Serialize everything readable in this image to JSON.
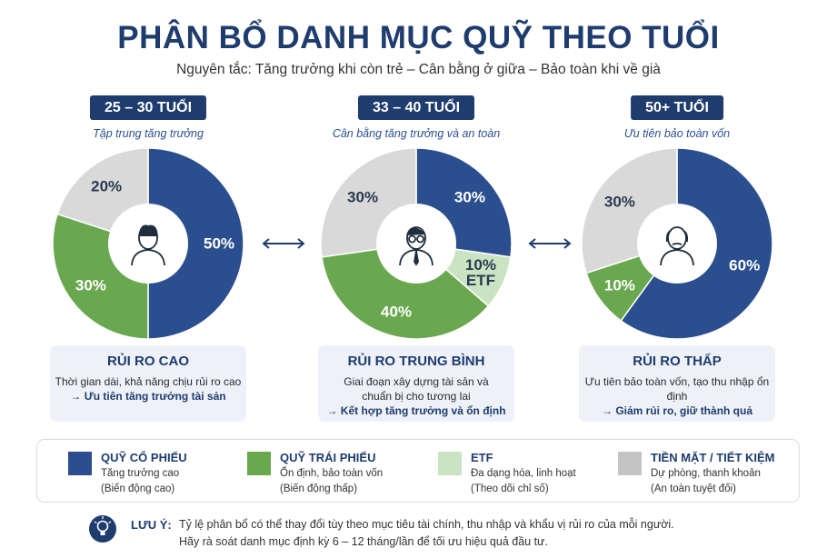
{
  "title": "PHÂN BỔ DANH MỤC QUỸ THEO TUỔI",
  "subtitle": "Nguyên tắc: Tăng trưởng khi còn trẻ – Cân bằng ở giữa – Bảo toàn khi về già",
  "chart_data": [
    {
      "type": "pie",
      "title": "25 – 30 TUỔI",
      "subtitle": "Tập trung tăng trưởng",
      "categories": [
        "QUỸ CỔ PHIẾU",
        "QUỸ TRÁI PHIẾU",
        "TIỀN MẶT / TIẾT KIỆM"
      ],
      "colors": [
        "#2b4f8e",
        "#6aa84f",
        "#d9d9d9"
      ],
      "values": [
        50,
        30,
        20
      ],
      "value_labels": [
        "50%",
        "30%",
        "20%"
      ]
    },
    {
      "type": "pie",
      "title": "33 – 40 TUỔI",
      "subtitle": "Cân bằng tăng trưởng và an toàn",
      "categories": [
        "QUỸ CỔ PHIẾU",
        "ETF",
        "QUỸ TRÁI PHIẾU",
        "TIỀN MẶT / TIẾT KIỆM"
      ],
      "colors": [
        "#2b4f8e",
        "#c9e3c3",
        "#6aa84f",
        "#d9d9d9"
      ],
      "values": [
        30,
        10,
        40,
        30
      ],
      "value_labels": [
        "30%",
        "10%\nETF",
        "40%",
        "30%"
      ]
    },
    {
      "type": "pie",
      "title": "50+ TUỔI",
      "subtitle": "Ưu tiên bảo toàn vốn",
      "categories": [
        "QUỸ CỔ PHIẾU",
        "QUỸ TRÁI PHIẾU",
        "TIỀN MẶT / TIẾT KIỆM"
      ],
      "colors": [
        "#2b4f8e",
        "#6aa84f",
        "#d9d9d9"
      ],
      "values": [
        60,
        10,
        30
      ],
      "value_labels": [
        "60%",
        "10%",
        "30%"
      ]
    }
  ],
  "risk_boxes": [
    {
      "title": "RỦI RO CAO",
      "lines": [
        "Thời gian dài, khả năng chịu rủi ro cao",
        "→ Ưu tiên tăng trưởng tài sản"
      ]
    },
    {
      "title": "RỦI RO TRUNG BÌNH",
      "lines": [
        "Giai đoạn xây dựng tài sản và",
        "chuẩn bị cho tương lai",
        "→ Kết hợp tăng trưởng và ổn định"
      ]
    },
    {
      "title": "RỦI RO THẤP",
      "lines": [
        "Ưu tiên bảo toàn vốn, tạo thu nhập ổn định",
        "→ Giảm rủi ro, giữ thành quả"
      ]
    }
  ],
  "legend": [
    {
      "name": "QUỸ CỔ PHIẾU",
      "color": "#2b4f8e",
      "lines": [
        "Tăng trưởng cao",
        "(Biến động cao)"
      ]
    },
    {
      "name": "QUỸ TRÁI PHIẾU",
      "color": "#6aa84f",
      "lines": [
        "Ổn định, bảo toàn vốn",
        "(Biến động thấp)"
      ]
    },
    {
      "name": "ETF",
      "color": "#c9e3c3",
      "lines": [
        "Đa dạng hóa, linh hoạt",
        "(Theo dõi chỉ số)"
      ]
    },
    {
      "name": "TIỀN MẶT / TIẾT KIỆM",
      "color": "#c4c4c4",
      "lines": [
        "Dự phòng, thanh khoản",
        "(An toàn tuyệt đối)"
      ]
    }
  ],
  "note": {
    "label": "LƯU Ý:",
    "lines": [
      "Tỷ lệ phân bổ có thể thay đổi tùy theo mục tiêu tài chính, thu nhập và khẩu vị rủi ro của mỗi người.",
      "Hãy rà soát danh mục định kỳ 6 – 12 tháng/lần để tối ưu hiệu quả đầu tư."
    ]
  }
}
